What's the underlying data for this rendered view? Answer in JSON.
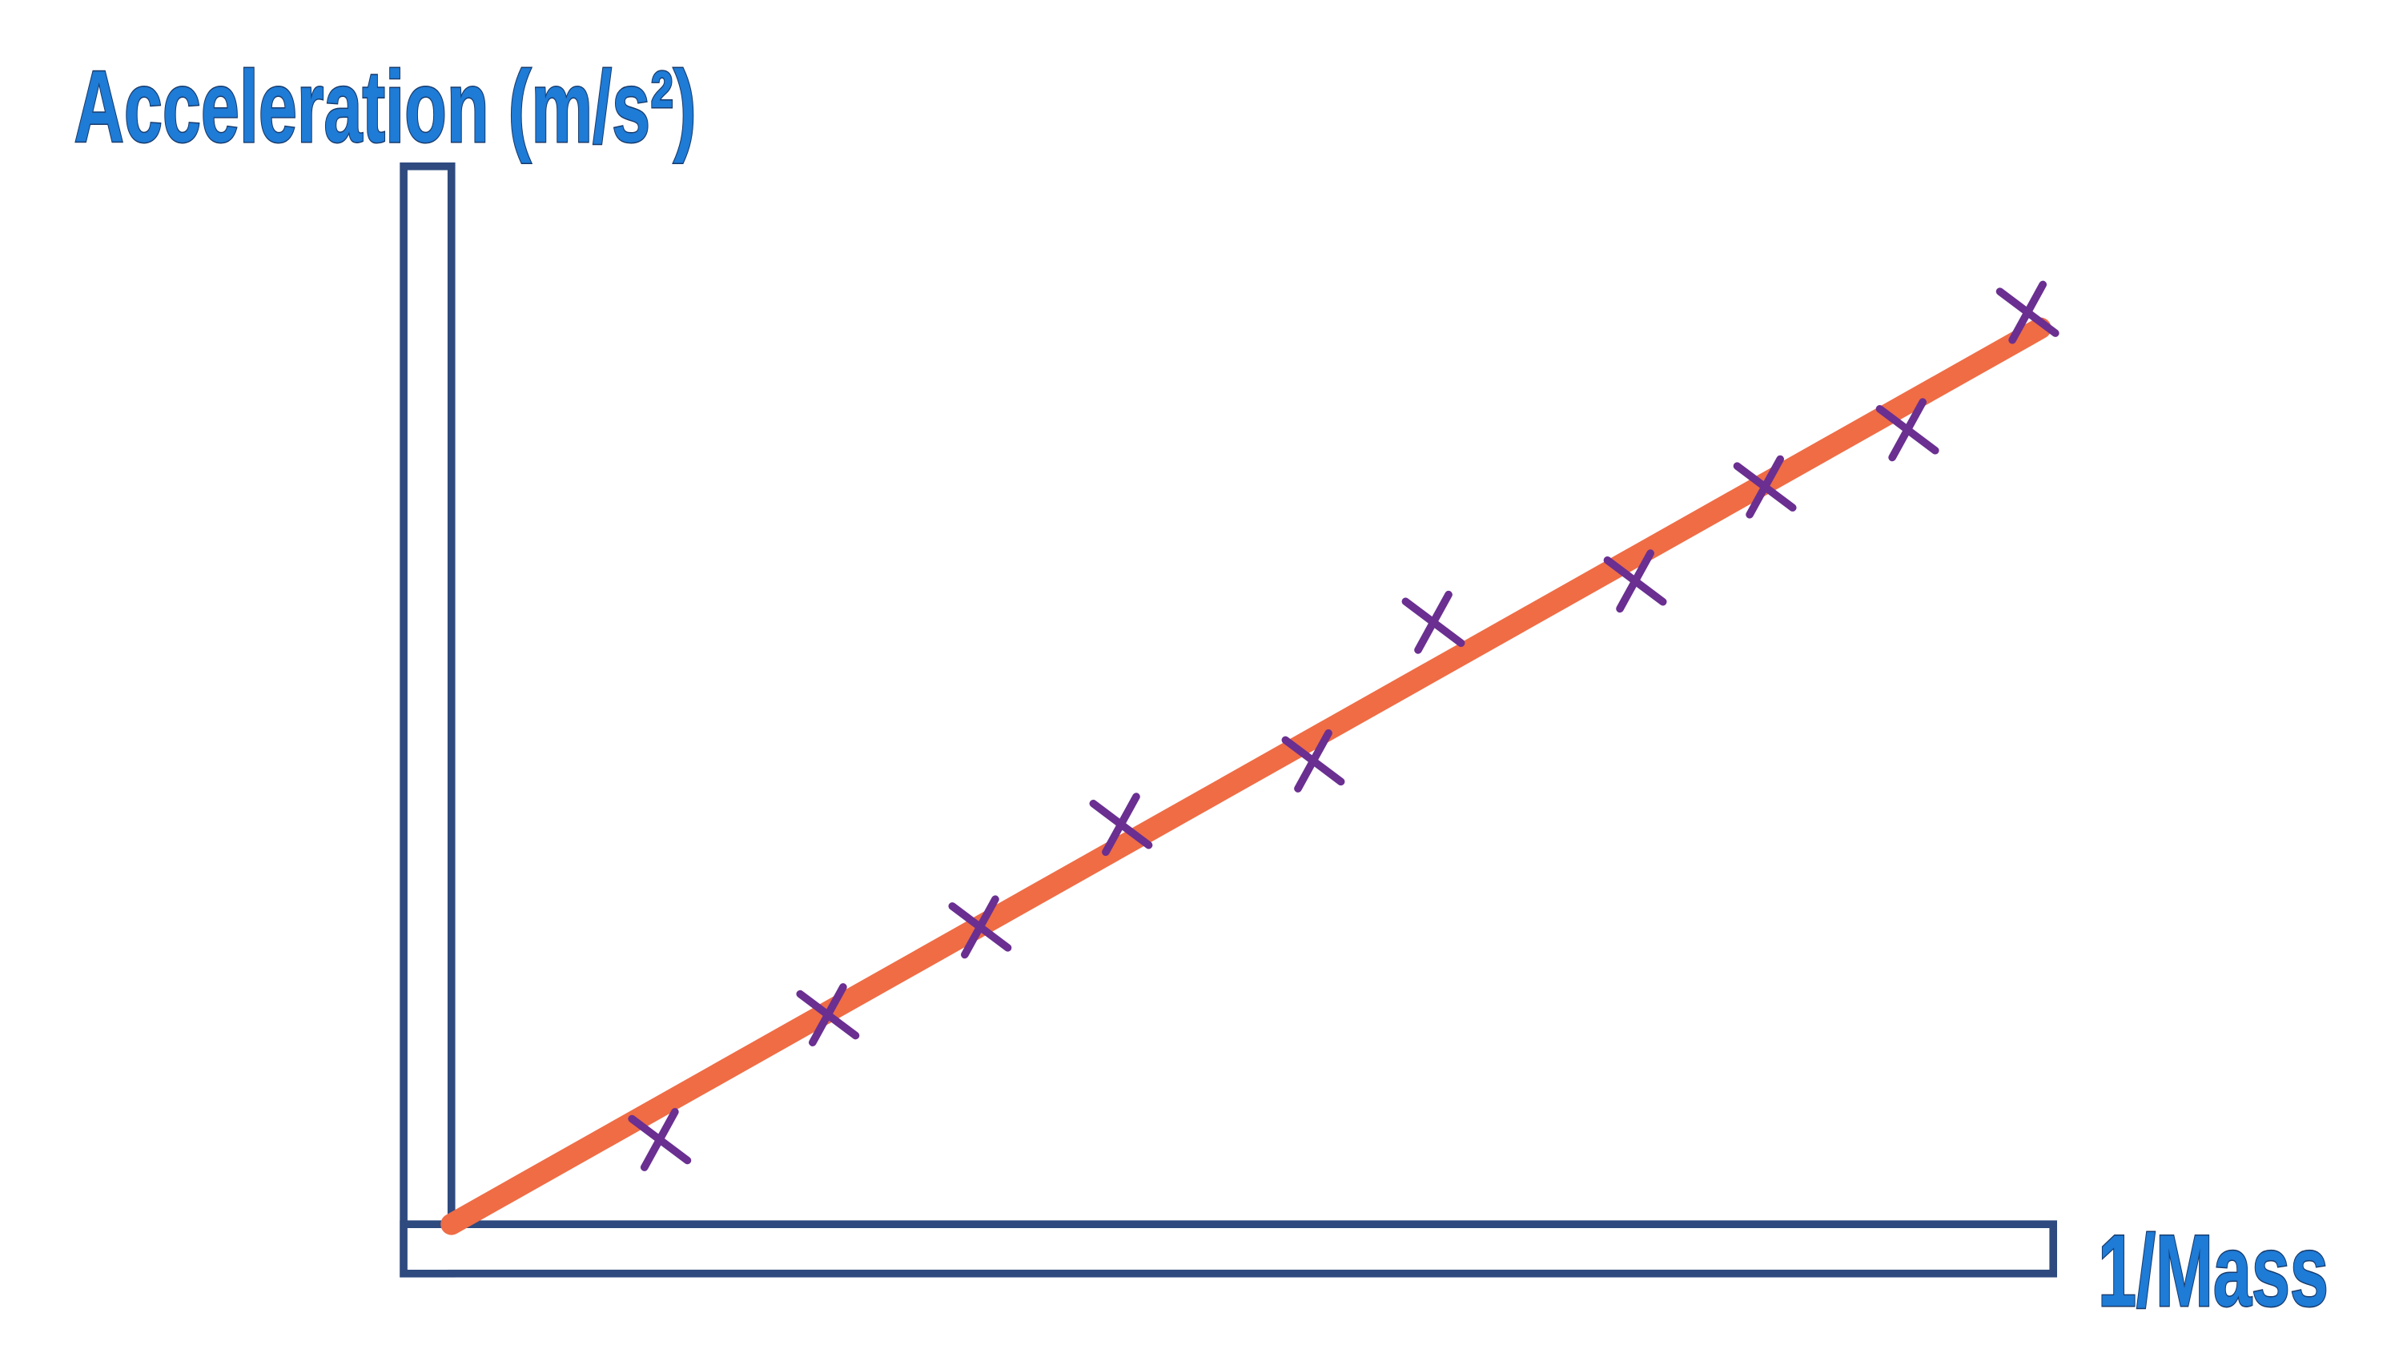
{
  "chart_data": {
    "type": "scatter",
    "title": "Acceleration (m/s²)",
    "x_label": "1/Mass",
    "x": [
      1.3,
      2.35,
      3.3,
      4.18,
      5.38,
      6.13,
      7.39,
      8.2,
      9.09,
      9.84
    ],
    "values": [
      0.8,
      1.98,
      2.81,
      3.78,
      4.38,
      5.69,
      6.08,
      6.97,
      7.51,
      8.62
    ],
    "color": "#6a2f91",
    "trend_line": {
      "x": [
        0,
        9.92
      ],
      "y": [
        0,
        8.47
      ],
      "color": "#ef6c45"
    },
    "xlim": [
      0,
      10
    ],
    "ylim": [
      0,
      10
    ],
    "grid": false
  }
}
